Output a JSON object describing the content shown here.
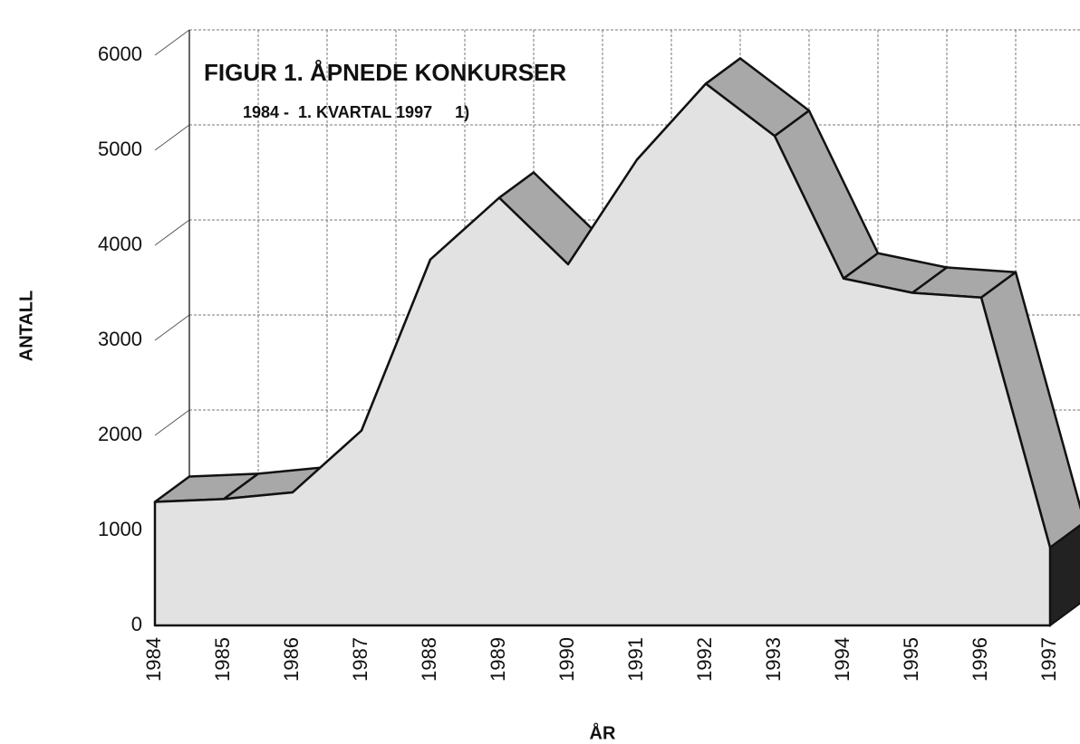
{
  "chart_data": {
    "type": "area3d",
    "title": "FIGUR 1. ÅPNEDE KONKURSER",
    "subtitle": "1984 -  1. KVARTAL 1997     1)",
    "x_label": "ÅR",
    "y_label": "ANTALL",
    "categories": [
      "1984",
      "1985",
      "1986",
      "1987",
      "1988",
      "1989",
      "1990",
      "1991",
      "1992",
      "1993",
      "1994",
      "1995",
      "1996",
      "1997"
    ],
    "values": [
      1300,
      1330,
      1400,
      2050,
      3850,
      4500,
      3800,
      4900,
      5700,
      5150,
      3650,
      3500,
      3450,
      820
    ],
    "color": "#e2e2e2",
    "top_color": "#a8a8a8",
    "side_color": "#222222",
    "ylim": [
      0,
      6000
    ],
    "yticks": [
      0,
      1000,
      2000,
      3000,
      4000,
      5000,
      6000
    ],
    "grid": true
  }
}
